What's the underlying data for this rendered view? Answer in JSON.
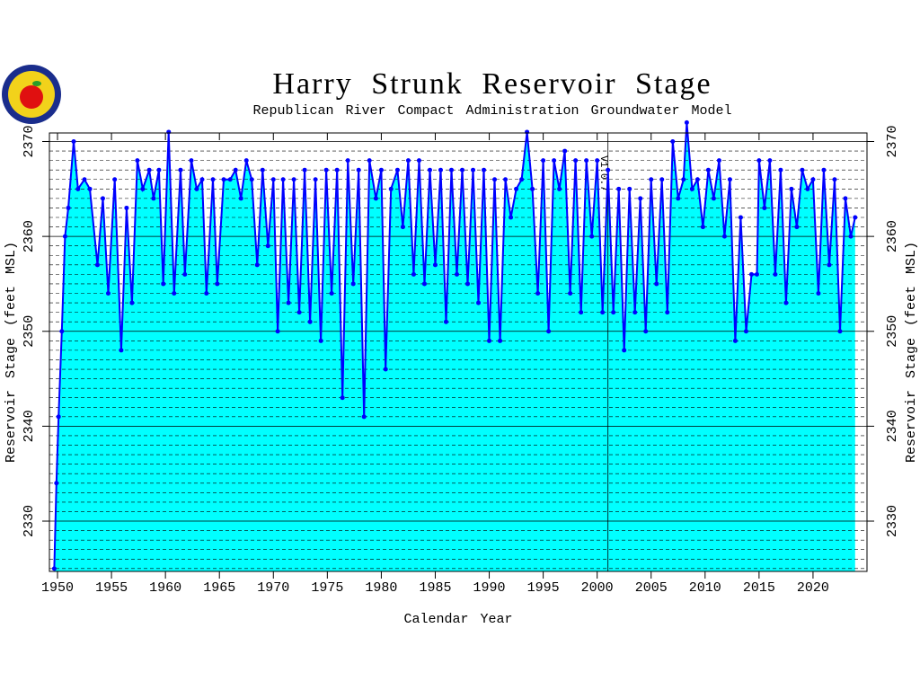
{
  "chart_data": {
    "type": "line",
    "title": "Harry Strunk Reservoir Stage",
    "subtitle": "Republican River Compact Administration Groundwater Model",
    "x_label": "Calendar Year",
    "y_label": "Reservoir Stage (feet MSL)",
    "xlim": [
      1949.25,
      2025
    ],
    "ylim": [
      2324.7,
      2370.9
    ],
    "xticks": [
      1950,
      1955,
      1960,
      1965,
      1970,
      1975,
      1980,
      1985,
      1990,
      1995,
      2000,
      2005,
      2010,
      2015,
      2020
    ],
    "yticks": [
      2330,
      2340,
      2350,
      2360,
      2370
    ],
    "minor_yticks": [
      2325,
      2326,
      2327,
      2328,
      2329,
      2331,
      2332,
      2333,
      2334,
      2335,
      2336,
      2337,
      2338,
      2339,
      2341,
      2342,
      2343,
      2344,
      2345,
      2346,
      2347,
      2348,
      2349,
      2351,
      2352,
      2353,
      2354,
      2355,
      2356,
      2357,
      2358,
      2359,
      2361,
      2362,
      2363,
      2364,
      2365,
      2366,
      2367,
      2368,
      2369
    ],
    "grid": true,
    "fill_color": "#00ffff",
    "vline": {
      "x": 2001,
      "label": "V1.0.7"
    },
    "x": [
      1949.7,
      1949.9,
      1950.1,
      1950.4,
      1950.7,
      1951.0,
      1951.5,
      1951.9,
      1952.5,
      1953.0,
      1953.7,
      1954.2,
      1954.7,
      1955.3,
      1955.9,
      1956.4,
      1956.9,
      1957.4,
      1957.9,
      1958.5,
      1958.9,
      1959.4,
      1959.8,
      1960.3,
      1960.8,
      1961.4,
      1961.8,
      1962.4,
      1962.9,
      1963.4,
      1963.8,
      1964.4,
      1964.8,
      1965.4,
      1966.0,
      1966.5,
      1967.0,
      1967.5,
      1968.0,
      1968.5,
      1969.0,
      1969.5,
      1970.0,
      1970.4,
      1970.9,
      1971.4,
      1971.9,
      1972.4,
      1972.9,
      1973.4,
      1973.9,
      1974.4,
      1974.9,
      1975.4,
      1975.9,
      1976.4,
      1976.9,
      1977.4,
      1977.9,
      1978.4,
      1978.9,
      1979.5,
      1980.0,
      1980.4,
      1980.9,
      1981.5,
      1982.0,
      1982.5,
      1983.0,
      1983.5,
      1984.0,
      1984.5,
      1985.0,
      1985.5,
      1986.0,
      1986.5,
      1987.0,
      1987.5,
      1988.0,
      1988.5,
      1989.0,
      1989.5,
      1990.0,
      1990.5,
      1991.0,
      1991.5,
      1992.0,
      1992.5,
      1993.0,
      1993.5,
      1994.0,
      1994.5,
      1995.0,
      1995.5,
      1996.0,
      1996.5,
      1997.0,
      1997.5,
      1998.0,
      1998.5,
      1999.0,
      1999.5,
      2000.0,
      2000.5,
      2001.0,
      2001.5,
      2002.0,
      2002.5,
      2003.0,
      2003.5,
      2004.0,
      2004.5,
      2005.0,
      2005.5,
      2006.0,
      2006.5,
      2007.0,
      2007.5,
      2008.0,
      2008.3,
      2008.8,
      2009.3,
      2009.8,
      2010.3,
      2010.8,
      2011.3,
      2011.8,
      2012.3,
      2012.8,
      2013.3,
      2013.8,
      2014.3,
      2014.8,
      2015.0,
      2015.5,
      2016.0,
      2016.5,
      2017.0,
      2017.5,
      2018.0,
      2018.5,
      2019.0,
      2019.5,
      2020.0,
      2020.5,
      2021.0,
      2021.5,
      2022.0,
      2022.5,
      2023.0,
      2023.5,
      2023.9
    ],
    "series": [
      {
        "color": "#0000ff",
        "values": [
          2325,
          2334,
          2341,
          2350,
          2360,
          2363,
          2370,
          2365,
          2366,
          2365,
          2357,
          2364,
          2354,
          2366,
          2348,
          2363,
          2353,
          2368,
          2365,
          2367,
          2364,
          2367,
          2355,
          2371,
          2354,
          2367,
          2356,
          2368,
          2365,
          2366,
          2354,
          2366,
          2355,
          2366,
          2366,
          2367,
          2364,
          2368,
          2366,
          2357,
          2367,
          2359,
          2366,
          2350,
          2366,
          2353,
          2366,
          2352,
          2367,
          2351,
          2366,
          2349,
          2367,
          2354,
          2367,
          2343,
          2368,
          2355,
          2367,
          2341,
          2368,
          2364,
          2367,
          2346,
          2365,
          2367,
          2361,
          2368,
          2356,
          2368,
          2355,
          2367,
          2357,
          2367,
          2351,
          2367,
          2356,
          2367,
          2355,
          2367,
          2353,
          2367,
          2349,
          2366,
          2349,
          2366,
          2362,
          2365,
          2366,
          2371,
          2365,
          2354,
          2368,
          2350,
          2368,
          2365,
          2369,
          2354,
          2368,
          2352,
          2368,
          2360,
          2368,
          2352,
          2367,
          2352,
          2365,
          2348,
          2365,
          2352,
          2364,
          2350,
          2366,
          2355,
          2366,
          2352,
          2370,
          2364,
          2366,
          2372,
          2365,
          2366,
          2361,
          2367,
          2364,
          2368,
          2360,
          2366,
          2349,
          2362,
          2350,
          2356,
          2356,
          2368,
          2363,
          2368,
          2356,
          2367,
          2353,
          2365,
          2361,
          2367,
          2365,
          2366,
          2354,
          2367,
          2357,
          2366,
          2350,
          2364,
          2360,
          2362
        ]
      }
    ]
  }
}
